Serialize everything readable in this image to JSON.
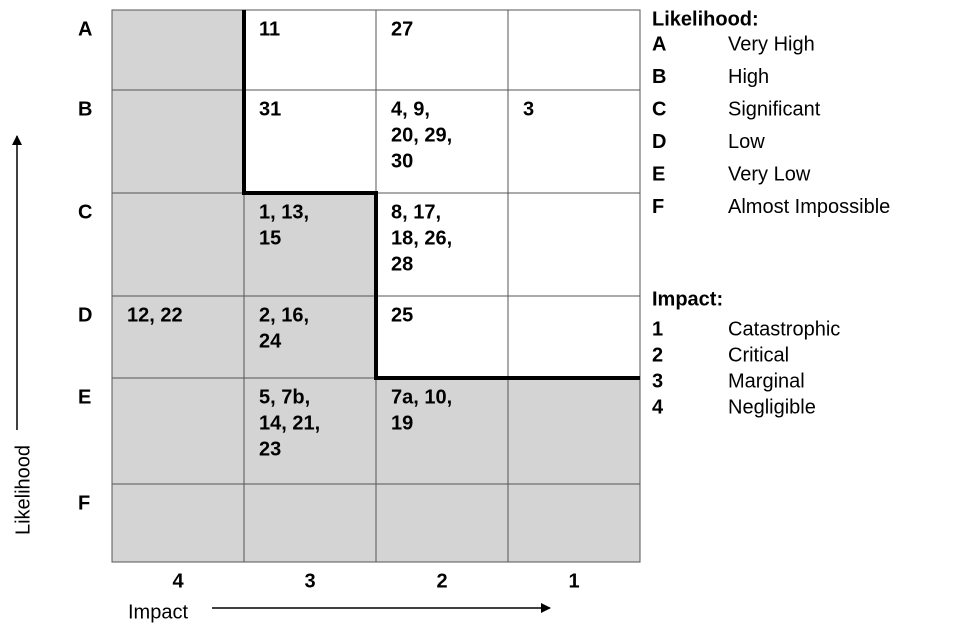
{
  "row_labels": [
    "A",
    "B",
    "C",
    "D",
    "E",
    "F"
  ],
  "column_labels": [
    "4",
    "3",
    "2",
    "1"
  ],
  "cells": [
    [
      {
        "lines": [],
        "shaded": true
      },
      {
        "lines": [
          "11"
        ],
        "shaded": false
      },
      {
        "lines": [
          "27"
        ],
        "shaded": false
      },
      {
        "lines": [],
        "shaded": false
      }
    ],
    [
      {
        "lines": [],
        "shaded": true
      },
      {
        "lines": [
          "31"
        ],
        "shaded": false
      },
      {
        "lines": [
          "4, 9,",
          "20, 29,",
          "30"
        ],
        "shaded": false
      },
      {
        "lines": [
          "3"
        ],
        "shaded": false
      }
    ],
    [
      {
        "lines": [],
        "shaded": true
      },
      {
        "lines": [
          "1, 13,",
          "15"
        ],
        "shaded": true
      },
      {
        "lines": [
          "8, 17,",
          "18, 26,",
          "28"
        ],
        "shaded": false
      },
      {
        "lines": [],
        "shaded": false
      }
    ],
    [
      {
        "lines": [
          "12, 22"
        ],
        "shaded": true
      },
      {
        "lines": [
          "2, 16,",
          "24"
        ],
        "shaded": true
      },
      {
        "lines": [
          "25"
        ],
        "shaded": false
      },
      {
        "lines": [],
        "shaded": false
      }
    ],
    [
      {
        "lines": [],
        "shaded": true
      },
      {
        "lines": [
          "5, 7b,",
          "14, 21,",
          "23"
        ],
        "shaded": true
      },
      {
        "lines": [
          "7a, 10,",
          "19"
        ],
        "shaded": true
      },
      {
        "lines": [],
        "shaded": true
      }
    ],
    [
      {
        "lines": [],
        "shaded": true
      },
      {
        "lines": [],
        "shaded": true
      },
      {
        "lines": [],
        "shaded": true
      },
      {
        "lines": [],
        "shaded": true
      }
    ]
  ],
  "y_axis_label": "Likelihood",
  "x_axis_label": "Impact",
  "legends": [
    {
      "title": "Likelihood:",
      "items": [
        {
          "code": "A",
          "label": "Very High"
        },
        {
          "code": "B",
          "label": "High"
        },
        {
          "code": "C",
          "label": "Significant"
        },
        {
          "code": "D",
          "label": "Low"
        },
        {
          "code": "E",
          "label": "Very Low"
        },
        {
          "code": "F",
          "label": "Almost Impossible"
        }
      ]
    },
    {
      "title": "Impact:",
      "items": [
        {
          "code": "1",
          "label": "Catastrophic"
        },
        {
          "code": "2",
          "label": "Critical"
        },
        {
          "code": "3",
          "label": "Marginal"
        },
        {
          "code": "4",
          "label": "Negligible"
        }
      ]
    }
  ]
}
